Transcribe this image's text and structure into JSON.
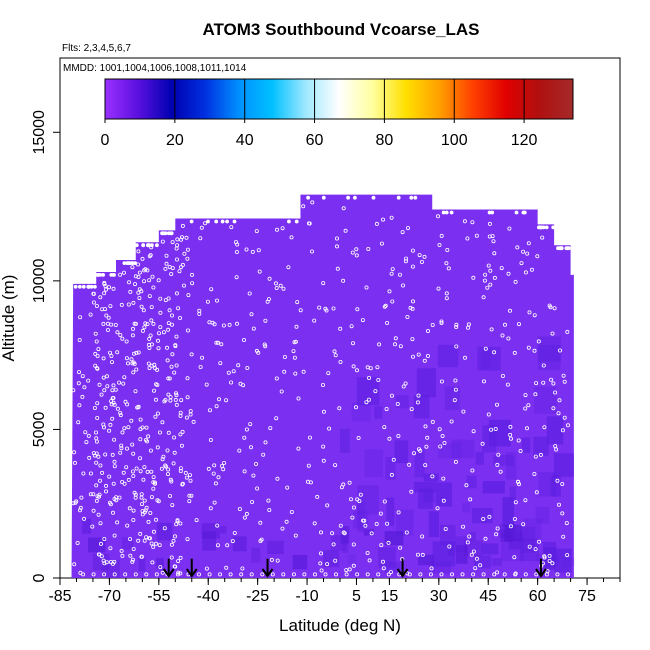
{
  "chart_data": {
    "type": "heatmap",
    "title": "ATOM3 Southbound Vcoarse_LAS",
    "subtitle_flights": "Flts: 2,3,4,5,6,7",
    "subtitle_dates": "MMDD: 1001,1004,1006,1008,1011,1014",
    "xlabel": "Latitude (deg N)",
    "ylabel": "Altitude (m)",
    "xlim": [
      -85,
      85
    ],
    "ylim": [
      0,
      17500
    ],
    "x_ticks": [
      -85,
      -70,
      -55,
      -40,
      -25,
      -10,
      5,
      15,
      30,
      45,
      60,
      75
    ],
    "y_ticks": [
      0,
      5000,
      10000,
      15000
    ],
    "colorbar": {
      "range": [
        0,
        134
      ],
      "ticks": [
        0,
        20,
        40,
        60,
        80,
        100,
        120
      ],
      "colors": [
        "#9b30ff",
        "#5a10e0",
        "#0000b0",
        "#0030e0",
        "#0090ff",
        "#00c0ff",
        "#a0e8ff",
        "#ffffff",
        "#ffffa0",
        "#ffe000",
        "#ffa000",
        "#ff4000",
        "#e00000",
        "#b01010",
        "#a52a2a"
      ]
    },
    "field_color": "#7b2ff0",
    "profile_markers_lat": [
      -52,
      -45,
      -22,
      19,
      61
    ],
    "ceiling_profile": [
      {
        "lat": -81,
        "alt": 9900
      },
      {
        "lat": -74,
        "alt": 10300
      },
      {
        "lat": -68,
        "alt": 10700
      },
      {
        "lat": -62,
        "alt": 11300
      },
      {
        "lat": -55,
        "alt": 11700
      },
      {
        "lat": -50,
        "alt": 12100
      },
      {
        "lat": -12,
        "alt": 12900
      },
      {
        "lat": 28,
        "alt": 12400
      },
      {
        "lat": 60,
        "alt": 11900
      },
      {
        "lat": 65,
        "alt": 11200
      },
      {
        "lat": 70,
        "alt": 10200
      }
    ],
    "data_range_lat": [
      -82,
      71
    ]
  }
}
